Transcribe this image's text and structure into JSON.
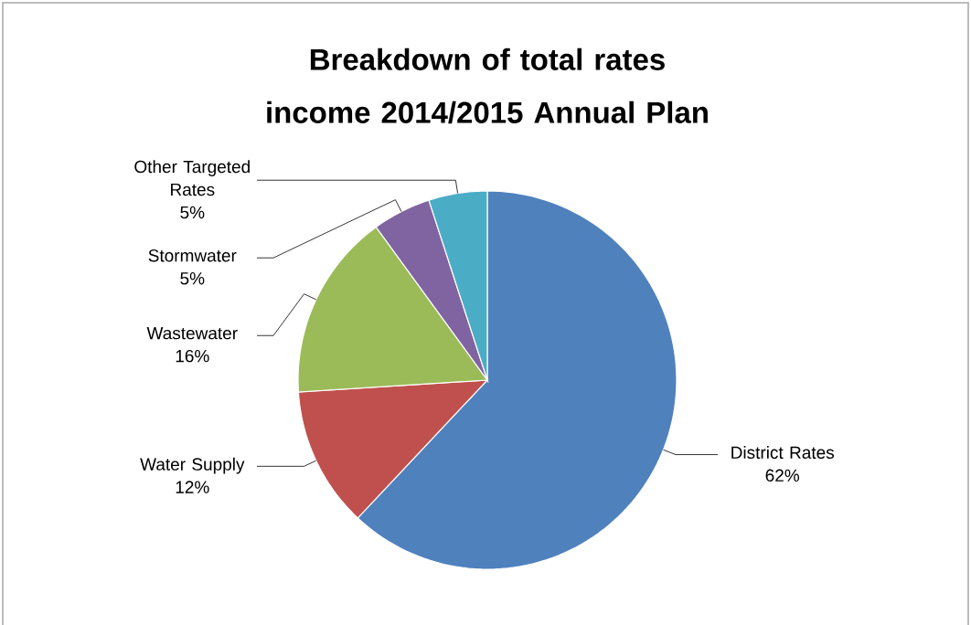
{
  "chart_data": {
    "type": "pie",
    "title": "Breakdown of total rates income 2014/2015 Annual Plan",
    "categories": [
      "District Rates",
      "Water Supply",
      "Wastewater",
      "Stormwater",
      "Other Targeted Rates"
    ],
    "values": [
      62,
      12,
      16,
      5,
      5
    ],
    "colors": [
      "#4f81bd",
      "#c0504d",
      "#9bbb59",
      "#8064a2",
      "#4bacc6"
    ],
    "value_labels": [
      "62%",
      "12%",
      "16%",
      "5%",
      "5%"
    ]
  }
}
